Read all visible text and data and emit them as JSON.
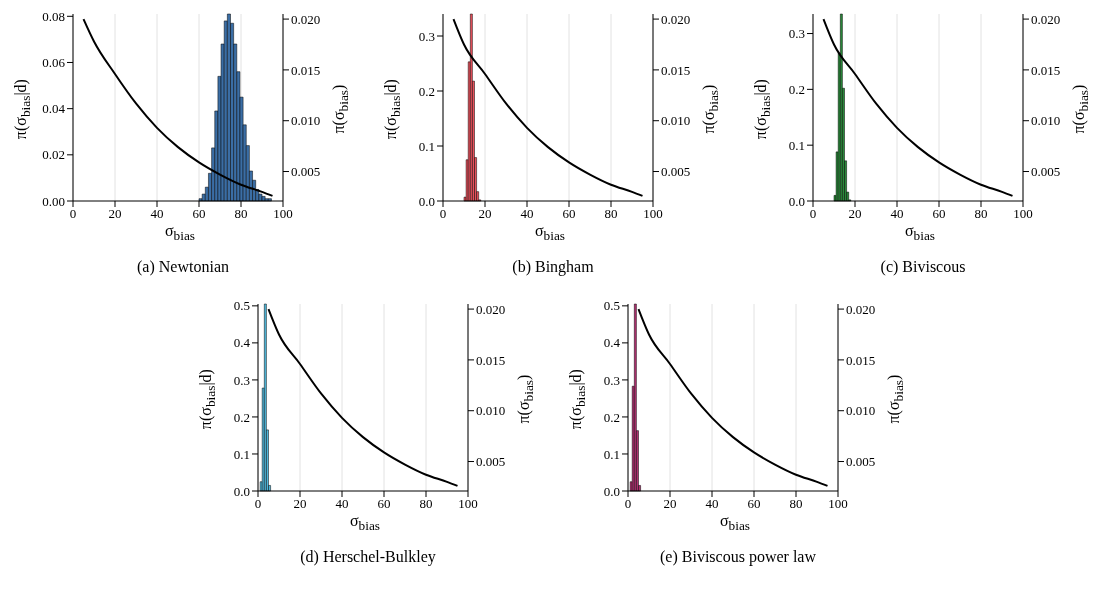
{
  "chart_data": [
    {
      "type": "histogram",
      "title": "(a) Newtonian",
      "xlabel": "σ$_{bias}$",
      "ylabel": "π(σ$_{bias}$|d)",
      "y2label": "π(σ$_{bias}$)",
      "color": "#3b6ea5",
      "grid": "x",
      "bins": [
        60,
        61.5,
        63,
        64.5,
        66,
        67.5,
        69,
        70.5,
        72,
        73.5,
        75,
        76.5,
        78,
        79.5,
        81,
        82.5,
        84,
        85.5,
        87,
        88.5,
        90,
        91.5,
        93,
        94.5
      ],
      "values": [
        0.001,
        0.003,
        0.006,
        0.012,
        0.023,
        0.039,
        0.054,
        0.068,
        0.078,
        0.081,
        0.077,
        0.068,
        0.056,
        0.045,
        0.033,
        0.024,
        0.013,
        0.009,
        0.005,
        0.003,
        0.002,
        0.001,
        0.001
      ],
      "xlim": [
        0,
        100
      ],
      "xticks": [
        0,
        20,
        40,
        60,
        80,
        100
      ],
      "ylim": [
        0,
        0.081
      ],
      "yticks": [
        {
          "value": 0,
          "label": "0.00"
        },
        {
          "value": 0.02,
          "label": "0.02"
        },
        {
          "value": 0.04,
          "label": "0.04"
        },
        {
          "value": 0.06,
          "label": "0.06"
        },
        {
          "value": 0.08,
          "label": "0.08"
        }
      ],
      "y2lim": [
        0.0021,
        0.0205
      ],
      "y2ticks": [
        {
          "value": 0.005,
          "label": "0.005"
        },
        {
          "value": 0.01,
          "label": "0.010"
        },
        {
          "value": 0.015,
          "label": "0.015"
        },
        {
          "value": 0.02,
          "label": "0.020"
        }
      ],
      "series": [
        {
          "type": "line",
          "axis": "y2",
          "color": "#000000",
          "x": [
            5,
            10,
            20,
            30,
            40,
            50,
            60,
            70,
            80,
            90,
            95
          ],
          "values": [
            0.02,
            0.0178,
            0.0146,
            0.0117,
            0.0093,
            0.0074,
            0.0059,
            0.0047,
            0.0037,
            0.003,
            0.0026
          ]
        }
      ]
    },
    {
      "type": "histogram",
      "title": "(b) Bingham",
      "xlabel": "σ$_{bias}$",
      "ylabel": "π(σ$_{bias}$|d)",
      "y2label": "π(σ$_{bias}$)",
      "color": "#e8505b",
      "grid": "x",
      "bins": [
        10,
        11,
        12,
        13,
        14,
        15,
        16,
        17,
        18
      ],
      "values": [
        0.007,
        0.075,
        0.253,
        0.34,
        0.218,
        0.079,
        0.017,
        0.002
      ],
      "xlim": [
        0,
        100
      ],
      "xticks": [
        0,
        20,
        40,
        60,
        80,
        100
      ],
      "ylim": [
        0,
        0.34
      ],
      "yticks": [
        {
          "value": 0,
          "label": "0.0"
        },
        {
          "value": 0.1,
          "label": "0.1"
        },
        {
          "value": 0.2,
          "label": "0.2"
        },
        {
          "value": 0.3,
          "label": "0.3"
        }
      ],
      "y2lim": [
        0.0021,
        0.0205
      ],
      "y2ticks": [
        {
          "value": 0.005,
          "label": "0.005"
        },
        {
          "value": 0.01,
          "label": "0.010"
        },
        {
          "value": 0.015,
          "label": "0.015"
        },
        {
          "value": 0.02,
          "label": "0.020"
        }
      ],
      "series": [
        {
          "type": "line",
          "axis": "y2",
          "color": "#000000",
          "x": [
            5,
            10,
            20,
            30,
            40,
            50,
            60,
            70,
            80,
            90,
            95
          ],
          "values": [
            0.02,
            0.0175,
            0.0146,
            0.0117,
            0.0093,
            0.0074,
            0.0059,
            0.0047,
            0.0037,
            0.003,
            0.0026
          ]
        }
      ]
    },
    {
      "type": "histogram",
      "title": "(c) Biviscous",
      "xlabel": "σ$_{bias}$",
      "ylabel": "π(σ$_{bias}$|d)",
      "y2label": "π(σ$_{bias}$)",
      "color": "#2a8a3a",
      "grid": "x",
      "bins": [
        10,
        11,
        12,
        13,
        14,
        15,
        16,
        17,
        18
      ],
      "values": [
        0.01,
        0.088,
        0.265,
        0.335,
        0.202,
        0.072,
        0.016,
        0.002
      ],
      "xlim": [
        0,
        100
      ],
      "xticks": [
        0,
        20,
        40,
        60,
        80,
        100
      ],
      "ylim": [
        0,
        0.335
      ],
      "yticks": [
        {
          "value": 0,
          "label": "0.0"
        },
        {
          "value": 0.1,
          "label": "0.1"
        },
        {
          "value": 0.2,
          "label": "0.2"
        },
        {
          "value": 0.3,
          "label": "0.3"
        }
      ],
      "y2lim": [
        0.0021,
        0.0205
      ],
      "y2ticks": [
        {
          "value": 0.005,
          "label": "0.005"
        },
        {
          "value": 0.01,
          "label": "0.010"
        },
        {
          "value": 0.015,
          "label": "0.015"
        },
        {
          "value": 0.02,
          "label": "0.020"
        }
      ],
      "series": [
        {
          "type": "line",
          "axis": "y2",
          "color": "#000000",
          "x": [
            5,
            10,
            20,
            30,
            40,
            50,
            60,
            70,
            80,
            90,
            95
          ],
          "values": [
            0.02,
            0.0175,
            0.0146,
            0.0117,
            0.0093,
            0.0074,
            0.0059,
            0.0047,
            0.0037,
            0.003,
            0.0026
          ]
        }
      ]
    },
    {
      "type": "histogram",
      "title": "(d) Herschel-Bulkley",
      "xlabel": "σ$_{bias}$",
      "ylabel": "π(σ$_{bias}$|d)",
      "y2label": "π(σ$_{bias}$)",
      "color": "#4fb8dc",
      "grid": "x",
      "bins": [
        1,
        2,
        3,
        4,
        5,
        6
      ],
      "values": [
        0.025,
        0.278,
        0.505,
        0.165,
        0.015
      ],
      "xlim": [
        0,
        100
      ],
      "xticks": [
        0,
        20,
        40,
        60,
        80,
        100
      ],
      "ylim": [
        0,
        0.505
      ],
      "yticks": [
        {
          "value": 0,
          "label": "0.0"
        },
        {
          "value": 0.1,
          "label": "0.1"
        },
        {
          "value": 0.2,
          "label": "0.2"
        },
        {
          "value": 0.3,
          "label": "0.3"
        },
        {
          "value": 0.4,
          "label": "0.4"
        },
        {
          "value": 0.5,
          "label": "0.5"
        }
      ],
      "y2lim": [
        0.0021,
        0.0205
      ],
      "y2ticks": [
        {
          "value": 0.005,
          "label": "0.005"
        },
        {
          "value": 0.01,
          "label": "0.010"
        },
        {
          "value": 0.015,
          "label": "0.015"
        },
        {
          "value": 0.02,
          "label": "0.020"
        }
      ],
      "series": [
        {
          "type": "line",
          "axis": "y2",
          "color": "#000000",
          "x": [
            5,
            10,
            20,
            30,
            40,
            50,
            60,
            70,
            80,
            90,
            95
          ],
          "values": [
            0.02,
            0.0175,
            0.0146,
            0.0117,
            0.0093,
            0.0074,
            0.0059,
            0.0047,
            0.0037,
            0.003,
            0.0026
          ]
        }
      ]
    },
    {
      "type": "histogram",
      "title": "(e) Biviscous power law",
      "xlabel": "σ$_{bias}$",
      "ylabel": "π(σ$_{bias}$|d)",
      "y2label": "π(σ$_{bias}$)",
      "color": "#b03070",
      "grid": "x",
      "bins": [
        1,
        2,
        3,
        4,
        5,
        6
      ],
      "values": [
        0.025,
        0.283,
        0.505,
        0.163,
        0.015
      ],
      "xlim": [
        0,
        100
      ],
      "xticks": [
        0,
        20,
        40,
        60,
        80,
        100
      ],
      "ylim": [
        0,
        0.505
      ],
      "yticks": [
        {
          "value": 0,
          "label": "0.0"
        },
        {
          "value": 0.1,
          "label": "0.1"
        },
        {
          "value": 0.2,
          "label": "0.2"
        },
        {
          "value": 0.3,
          "label": "0.3"
        },
        {
          "value": 0.4,
          "label": "0.4"
        },
        {
          "value": 0.5,
          "label": "0.5"
        }
      ],
      "y2lim": [
        0.0021,
        0.0205
      ],
      "y2ticks": [
        {
          "value": 0.005,
          "label": "0.005"
        },
        {
          "value": 0.01,
          "label": "0.010"
        },
        {
          "value": 0.015,
          "label": "0.015"
        },
        {
          "value": 0.02,
          "label": "0.020"
        }
      ],
      "series": [
        {
          "type": "line",
          "axis": "y2",
          "color": "#000000",
          "x": [
            5,
            10,
            20,
            30,
            40,
            50,
            60,
            70,
            80,
            90,
            95
          ],
          "values": [
            0.02,
            0.0175,
            0.0146,
            0.0117,
            0.0093,
            0.0074,
            0.0059,
            0.0047,
            0.0037,
            0.003,
            0.0026
          ]
        }
      ]
    }
  ]
}
